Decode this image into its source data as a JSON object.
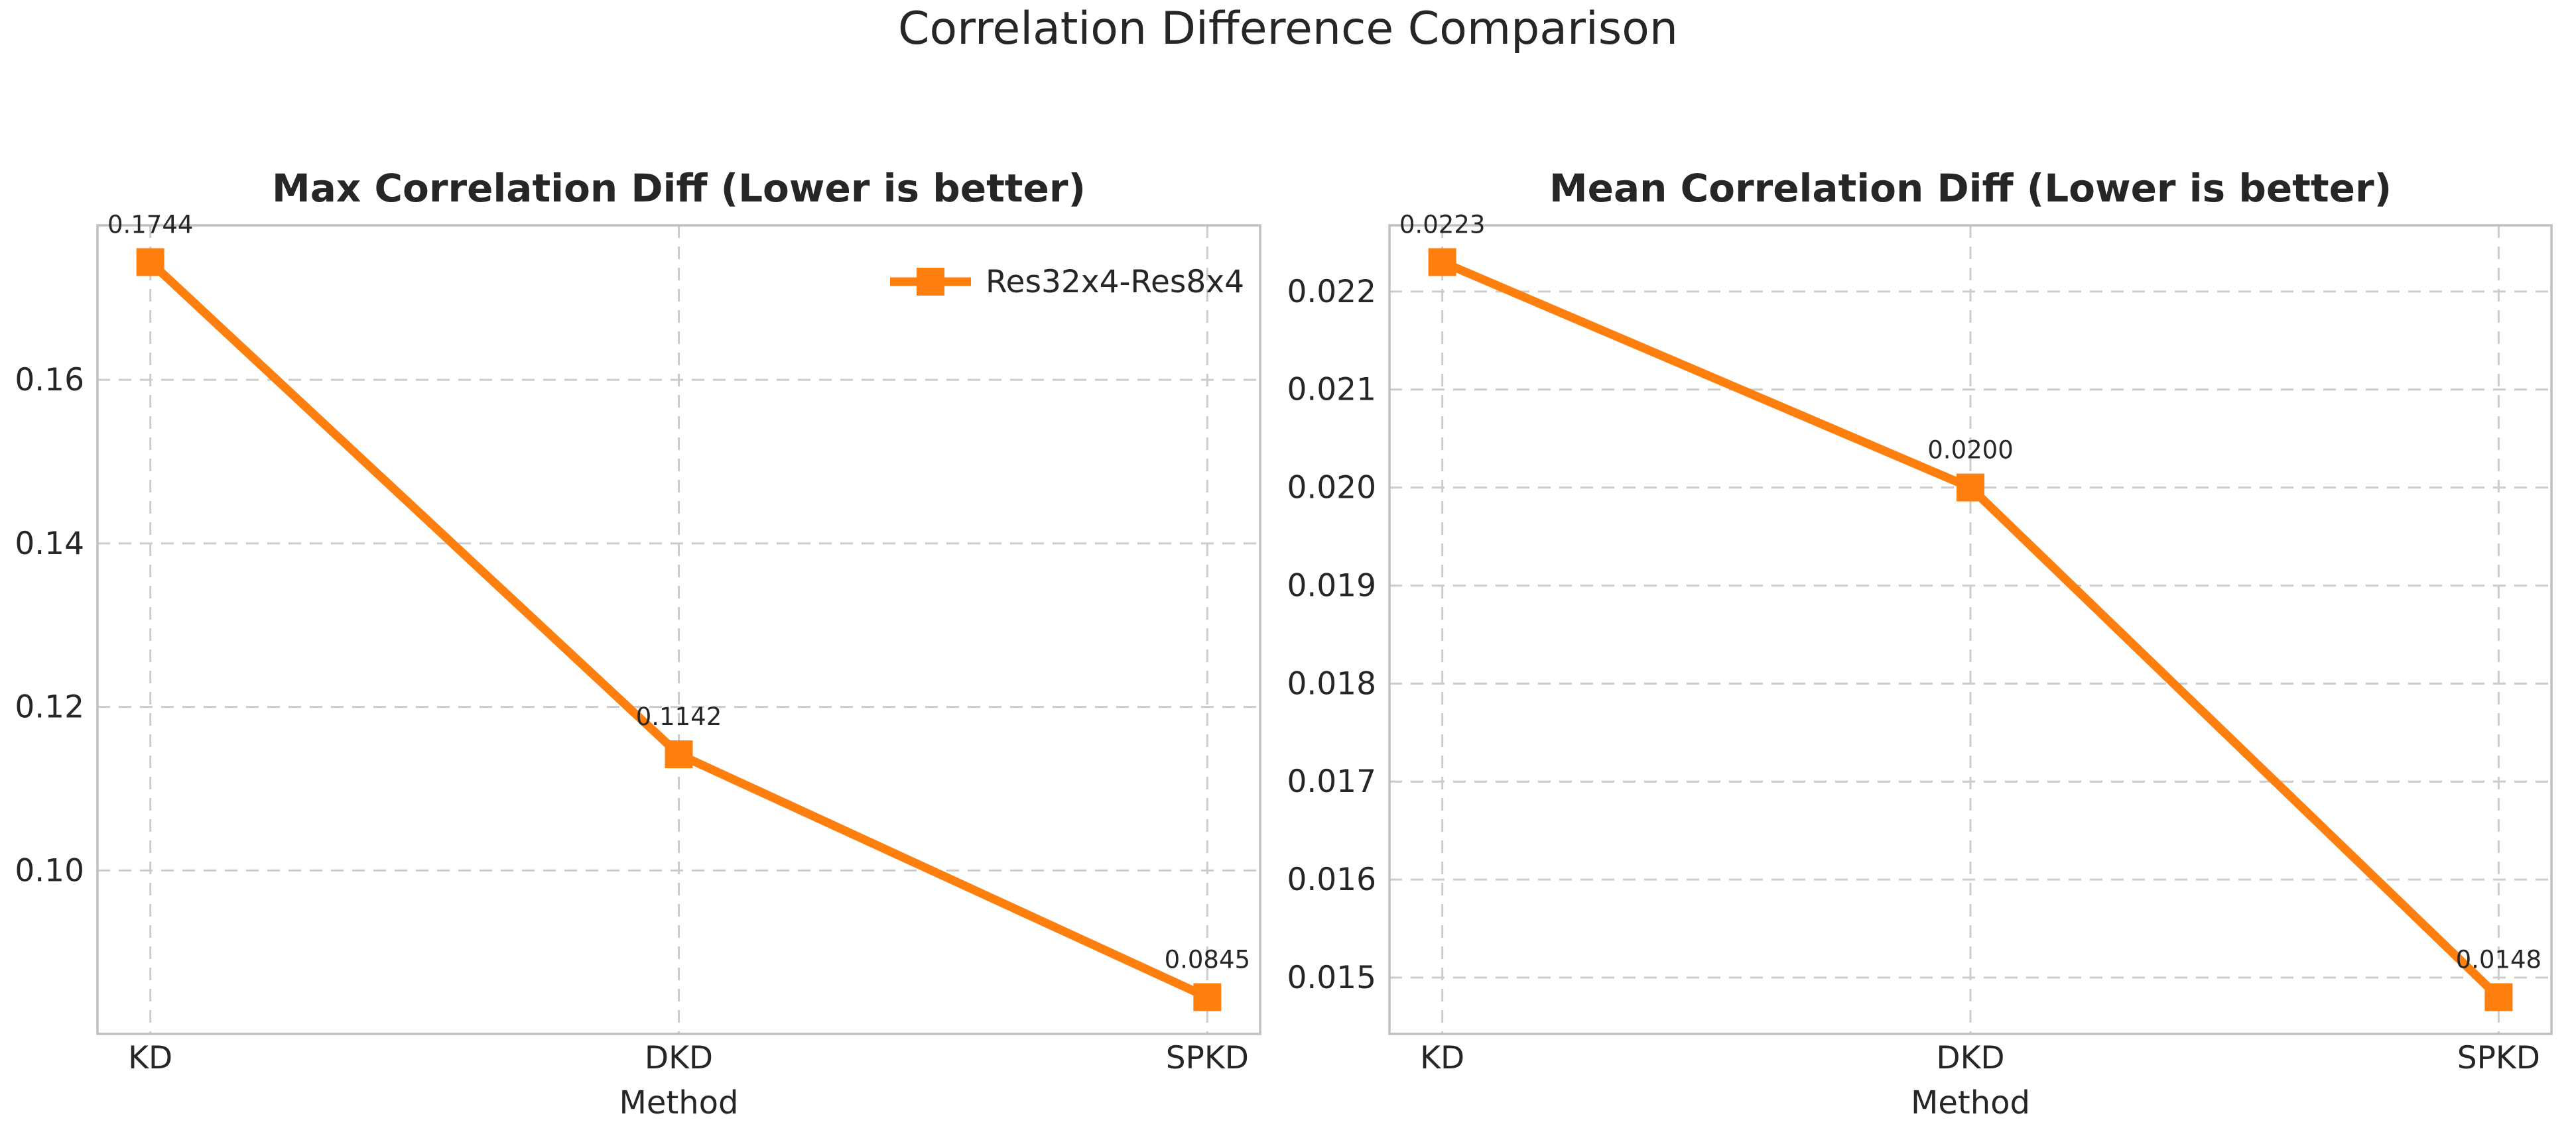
{
  "figure": {
    "suptitle": "Correlation Difference Comparison",
    "background": "#ffffff",
    "text_color": "#262626"
  },
  "colors": {
    "series": "#ff7f0e",
    "grid": "#cccccc",
    "spine": "#c0c0c0"
  },
  "legend": {
    "label": "Res32x4-Res8x4",
    "location": "upper right",
    "attached_to_chart": 0,
    "marker": "square-on-line"
  },
  "chart_data": [
    {
      "type": "line",
      "title": "Max Correlation Diff (Lower is better)",
      "xlabel": "Method",
      "ylabel": "",
      "categories": [
        "KD",
        "DKD",
        "SPKD"
      ],
      "series": [
        {
          "name": "Res32x4-Res8x4",
          "marker": "square",
          "values": [
            0.1744,
            0.1142,
            0.0845
          ],
          "point_labels": [
            "0.1744",
            "0.1142",
            "0.0845"
          ]
        }
      ],
      "ylim": [
        0.080005,
        0.178895
      ],
      "yticks": [
        {
          "v": 0.1,
          "label": "0.10"
        },
        {
          "v": 0.12,
          "label": "0.12"
        },
        {
          "v": 0.14,
          "label": "0.14"
        },
        {
          "v": 0.16,
          "label": "0.16"
        }
      ],
      "grid": true,
      "grid_style": "dashed",
      "legend_visible": true
    },
    {
      "type": "line",
      "title": "Mean Correlation Diff (Lower is better)",
      "xlabel": "Method",
      "ylabel": "",
      "categories": [
        "KD",
        "DKD",
        "SPKD"
      ],
      "series": [
        {
          "name": "Res32x4-Res8x4",
          "marker": "square",
          "values": [
            0.0223,
            0.02,
            0.0148
          ],
          "point_labels": [
            "0.0223",
            "0.0200",
            "0.0148"
          ]
        }
      ],
      "ylim": [
        0.014425,
        0.022675
      ],
      "yticks": [
        {
          "v": 0.015,
          "label": "0.015"
        },
        {
          "v": 0.016,
          "label": "0.016"
        },
        {
          "v": 0.017,
          "label": "0.017"
        },
        {
          "v": 0.018,
          "label": "0.018"
        },
        {
          "v": 0.019,
          "label": "0.019"
        },
        {
          "v": 0.02,
          "label": "0.020"
        },
        {
          "v": 0.021,
          "label": "0.021"
        },
        {
          "v": 0.022,
          "label": "0.022"
        }
      ],
      "grid": true,
      "grid_style": "dashed",
      "legend_visible": false
    }
  ]
}
